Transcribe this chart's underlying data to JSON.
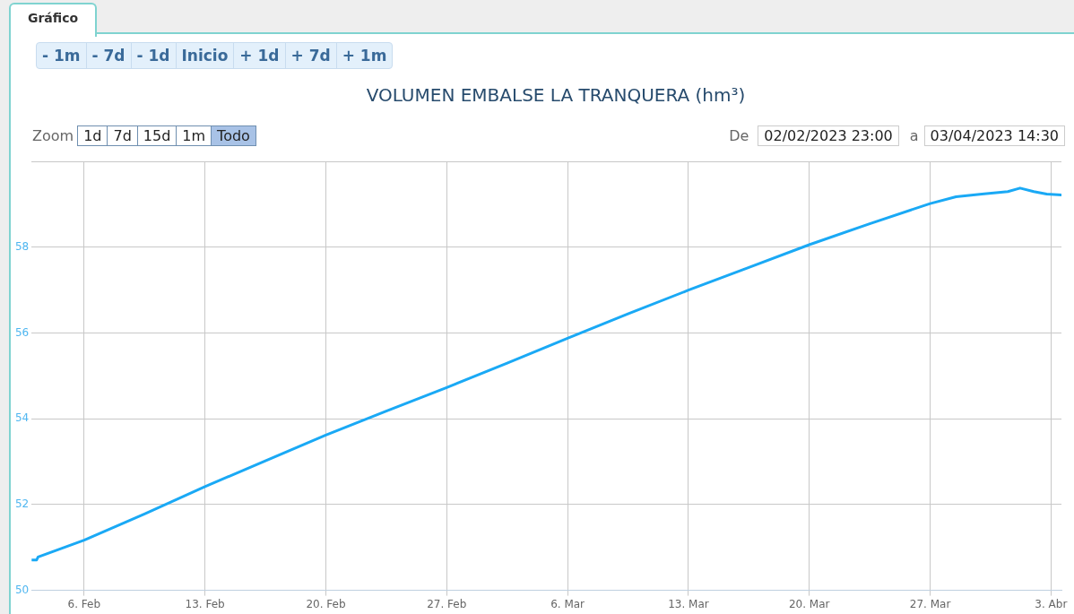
{
  "chart_data": {
    "type": "line",
    "title": "VOLUMEN EMBALSE LA TRANQUERA (hm³)",
    "annotations": [
      "Gráfico",
      "- 1m",
      "- 7d",
      "- 1d",
      "Inicio",
      "+ 1d",
      "+ 7d",
      "+ 1m",
      "Zoom",
      "1d",
      "7d",
      "15d",
      "1m",
      "Todo",
      "De",
      "02/02/2023 23:00",
      "a",
      "03/04/2023 14:30"
    ],
    "x": [
      "2023-02-02T23:00",
      "2023-02-03T06:00",
      "2023-02-03T08:00",
      "2023-02-06T00:00",
      "2023-02-09T12:00",
      "2023-02-13T00:00",
      "2023-02-16T12:00",
      "2023-02-20T00:00",
      "2023-02-23T12:00",
      "2023-02-27T00:00",
      "2023-03-02T12:00",
      "2023-03-06T00:00",
      "2023-03-09T12:00",
      "2023-03-13T00:00",
      "2023-03-16T12:00",
      "2023-03-20T00:00",
      "2023-03-23T12:00",
      "2023-03-27T00:00",
      "2023-03-28T12:00",
      "2023-03-30T00:00",
      "2023-03-31T12:00",
      "2023-04-01T05:00",
      "2023-04-02T00:00",
      "2023-04-02T18:00",
      "2023-04-03T14:30"
    ],
    "series": [
      {
        "color": "#1aa9f5",
        "values": [
          50.71,
          50.71,
          50.78,
          51.17,
          51.78,
          52.42,
          53.02,
          53.62,
          54.18,
          54.73,
          55.3,
          55.88,
          56.45,
          57.0,
          57.53,
          58.06,
          58.55,
          59.02,
          59.18,
          59.24,
          59.3,
          59.38,
          59.3,
          59.24,
          59.22
        ]
      }
    ],
    "xlim": [
      "2023-02-02T23:00",
      "2023-04-03T14:30"
    ],
    "xticks": [
      {
        "value": "2023-02-06",
        "label": "6. Feb"
      },
      {
        "value": "2023-02-13",
        "label": "13. Feb"
      },
      {
        "value": "2023-02-20",
        "label": "20. Feb"
      },
      {
        "value": "2023-02-27",
        "label": "27. Feb"
      },
      {
        "value": "2023-03-06",
        "label": "6. Mar"
      },
      {
        "value": "2023-03-13",
        "label": "13. Mar"
      },
      {
        "value": "2023-03-20",
        "label": "20. Mar"
      },
      {
        "value": "2023-03-27",
        "label": "27. Mar"
      },
      {
        "value": "2023-04-03",
        "label": "3. Abr"
      }
    ],
    "ylim": [
      50,
      60
    ],
    "yticks": [
      50,
      52,
      54,
      56,
      58,
      {
        "value": 60,
        "label": null
      }
    ],
    "grid": true,
    "legend": false,
    "marker": "none",
    "line_style": "solid"
  }
}
